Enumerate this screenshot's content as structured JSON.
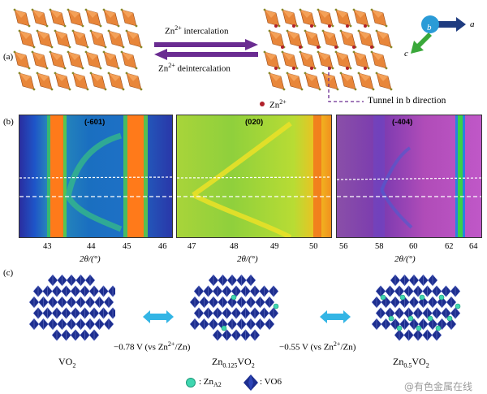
{
  "panels": {
    "a": "(a)",
    "b": "(b)",
    "c": "(c)"
  },
  "panel_a": {
    "intercalation": {
      "base": "Zn",
      "sup": "2+",
      "rest": " intercalation"
    },
    "deintercalation": {
      "base": "Zn",
      "sup": "2+",
      "rest": " deintercalation"
    },
    "ion_legend": {
      "base": "Zn",
      "sup": "2+"
    },
    "tunnel_note": "Tunnel in b direction",
    "axes": {
      "a": "a",
      "b": "b",
      "c": "c"
    },
    "colors": {
      "polyhedra": "#e8863a",
      "arrow": "#6a2c91",
      "zn_dot": "#b0202a",
      "axis_a": "#1f3c80",
      "axis_b": "#2a9bd7",
      "axis_c": "#3aa83a"
    }
  },
  "panel_b": {
    "maps": [
      {
        "peak": "(-601)",
        "ticks": [
          "43",
          "44",
          "45",
          "46"
        ],
        "x_label": "2θ/(°)"
      },
      {
        "peak": "(020)",
        "ticks": [
          "47",
          "48",
          "49",
          "50"
        ],
        "x_label": "2θ/(°)"
      },
      {
        "peak": "(-404)",
        "ticks": [
          "56",
          "58",
          "60",
          "62",
          "64"
        ],
        "x_label": "2θ/(°)"
      }
    ]
  },
  "panel_c": {
    "structures": [
      {
        "label": {
          "base": "VO",
          "sub": "2"
        }
      },
      {
        "label": {
          "base": "Zn",
          "sub": "0.125",
          "rest": "VO",
          "sub2": "2"
        }
      },
      {
        "label": {
          "base": "Zn",
          "sub": "0.5",
          "rest": "VO",
          "sub2": "2"
        }
      }
    ],
    "potential_1": {
      "pre": "−0.78 V (vs Zn",
      "sup": "2+",
      "post": "/Zn)"
    },
    "potential_2": {
      "pre": "−0.55 V (vs Zn",
      "sup": "2+",
      "post": "/Zn)"
    },
    "legend": {
      "zn_label": {
        "pre": ": Zn",
        "sub": "A2"
      },
      "vo6_label": ": VO6"
    },
    "colors": {
      "octahedra": "#1d2e8f",
      "zn": "#3fd6b0",
      "arrow": "#33b5e5"
    }
  },
  "watermark": "@有色金属在线"
}
